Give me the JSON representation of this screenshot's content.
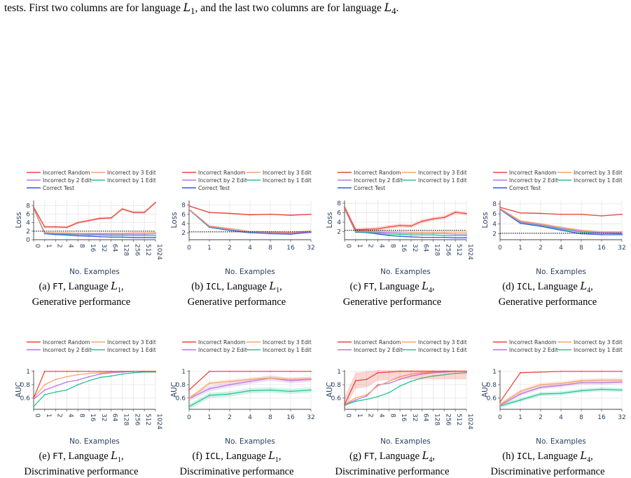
{
  "caption": {
    "text_a": "tests. First two columns are for language ",
    "lang1": "L",
    "sub1": "1",
    "text_b": ", and the last two columns are for language ",
    "lang2": "L",
    "sub2": "4",
    "text_c": "."
  },
  "colors": {
    "Incorrect Random": "#e8493d",
    "Incorrect by 3 Edit": "#f6a46a",
    "Incorrect by 2 Edit": "#b777e8",
    "Incorrect by 1 Edit": "#27c597",
    "Correct Test": "#3a55dd"
  },
  "legend_top": [
    "Incorrect Random",
    "Incorrect by 3 Edit",
    "Incorrect by 2 Edit",
    "Incorrect by 1 Edit",
    "Correct Test"
  ],
  "legend_bottom": [
    "Incorrect Random",
    "Incorrect by 3 Edit",
    "Incorrect by 2 Edit",
    "Incorrect by 1 Edit"
  ],
  "chart_data": [
    {
      "id": "a",
      "type": "line",
      "row": "top",
      "col": 0,
      "label_prefix": "(a)",
      "method": "FT",
      "lang_letter": "L",
      "lang_sub": "1",
      "perf": "Generative performance",
      "xlabel": "No. Examples",
      "ylabel": "Loss",
      "x": [
        "0",
        "1",
        "2",
        "4",
        "8",
        "16",
        "32",
        "64",
        "128",
        "256",
        "512",
        "1024"
      ],
      "ylim": [
        0,
        9.2
      ],
      "yticks": [
        "0",
        "2",
        "4",
        "6",
        "8"
      ],
      "grid": true,
      "legend": "top",
      "hline": 2.0,
      "rotate_xticks": true,
      "series": [
        {
          "name": "Incorrect Random",
          "values": [
            7.6,
            3.0,
            3.0,
            2.9,
            4.0,
            4.5,
            5.0,
            5.1,
            7.2,
            6.4,
            6.4,
            8.7
          ],
          "band": 0.3
        },
        {
          "name": "Incorrect by 3 Edit",
          "values": [
            7.5,
            1.7,
            1.6,
            1.6,
            1.5,
            1.5,
            1.5,
            1.5,
            1.5,
            1.6,
            1.6,
            1.7
          ]
        },
        {
          "name": "Incorrect by 2 Edit",
          "values": [
            7.5,
            1.6,
            1.5,
            1.4,
            1.3,
            1.3,
            1.3,
            1.3,
            1.3,
            1.3,
            1.3,
            1.4
          ]
        },
        {
          "name": "Incorrect by 1 Edit",
          "values": [
            7.5,
            1.5,
            1.4,
            1.3,
            1.2,
            1.1,
            1.1,
            1.0,
            1.0,
            1.0,
            1.0,
            1.0
          ]
        },
        {
          "name": "Correct Test",
          "values": [
            7.4,
            1.4,
            1.2,
            1.1,
            0.9,
            0.8,
            0.7,
            0.6,
            0.6,
            0.5,
            0.5,
            0.5
          ]
        }
      ]
    },
    {
      "id": "b",
      "type": "line",
      "row": "top",
      "col": 1,
      "label_prefix": "(b)",
      "method": "ICL",
      "lang_letter": "L",
      "lang_sub": "1",
      "perf": "Generative performance",
      "xlabel": "No. Examples",
      "ylabel": "Loss",
      "x": [
        "0",
        "1",
        "2",
        "4",
        "8",
        "16",
        "32"
      ],
      "ylim": [
        0.5,
        9.0
      ],
      "yticks": [
        "2",
        "4",
        "6",
        "8"
      ],
      "grid": true,
      "legend": "top",
      "hline": 2.2,
      "rotate_xticks": false,
      "series": [
        {
          "name": "Incorrect Random",
          "values": [
            7.8,
            6.4,
            6.2,
            5.9,
            6.0,
            5.8,
            6.0
          ],
          "band": 0.15
        },
        {
          "name": "Incorrect by 3 Edit",
          "values": [
            7.1,
            3.5,
            2.9,
            2.3,
            2.2,
            2.1,
            2.4
          ],
          "band": 0.15
        },
        {
          "name": "Incorrect by 2 Edit",
          "values": [
            7.1,
            3.4,
            2.7,
            2.2,
            2.0,
            1.9,
            2.2
          ]
        },
        {
          "name": "Incorrect by 1 Edit",
          "values": [
            7.1,
            3.3,
            2.6,
            2.1,
            1.9,
            1.9,
            2.2
          ]
        },
        {
          "name": "Correct Test",
          "values": [
            7.0,
            3.2,
            2.5,
            2.0,
            1.8,
            1.7,
            2.1
          ]
        }
      ]
    },
    {
      "id": "c",
      "type": "line",
      "row": "top",
      "col": 2,
      "label_prefix": "(c)",
      "method": "FT",
      "lang_letter": "L",
      "lang_sub": "4",
      "perf": "Generative performance",
      "xlabel": "No. Examples",
      "ylabel": "Loss",
      "x": [
        "0",
        "1",
        "2",
        "4",
        "8",
        "16",
        "32",
        "64",
        "128",
        "256",
        "512",
        "1024"
      ],
      "ylim": [
        0.3,
        8.6
      ],
      "yticks": [
        "2",
        "4",
        "6",
        "8"
      ],
      "grid": true,
      "legend": "top",
      "hline": 2.3,
      "rotate_xticks": true,
      "series": [
        {
          "name": "Incorrect Random",
          "values": [
            7.2,
            2.4,
            2.5,
            2.6,
            3.0,
            3.3,
            3.2,
            4.2,
            4.7,
            5.0,
            6.1,
            5.8
          ],
          "band": 0.4
        },
        {
          "name": "Incorrect by 3 Edit",
          "values": [
            7.0,
            2.2,
            2.2,
            2.1,
            2.0,
            2.0,
            1.9,
            1.9,
            1.9,
            1.9,
            1.9,
            1.9
          ]
        },
        {
          "name": "Incorrect by 2 Edit",
          "values": [
            7.0,
            2.1,
            2.0,
            1.9,
            1.8,
            1.7,
            1.6,
            1.6,
            1.6,
            1.6,
            1.5,
            1.5
          ]
        },
        {
          "name": "Incorrect by 1 Edit",
          "values": [
            7.0,
            2.0,
            1.9,
            1.7,
            1.5,
            1.4,
            1.3,
            1.3,
            1.3,
            1.2,
            1.2,
            1.2
          ]
        },
        {
          "name": "Correct Test",
          "values": [
            6.9,
            1.9,
            1.8,
            1.5,
            1.2,
            1.0,
            0.9,
            0.8,
            0.8,
            0.8,
            0.7,
            0.7
          ]
        }
      ]
    },
    {
      "id": "d",
      "type": "line",
      "row": "top",
      "col": 3,
      "label_prefix": "(d)",
      "method": "ICL",
      "lang_letter": "L",
      "lang_sub": "4",
      "perf": "Generative performance",
      "xlabel": "No. Examples",
      "ylabel": "Loss",
      "x": [
        "0",
        "1",
        "2",
        "4",
        "8",
        "16",
        "32"
      ],
      "ylim": [
        0.8,
        8.7
      ],
      "yticks": [
        "2",
        "4",
        "6",
        "8"
      ],
      "grid": true,
      "legend": "top",
      "hline": 2.1,
      "rotate_xticks": false,
      "series": [
        {
          "name": "Incorrect Random",
          "values": [
            7.3,
            6.2,
            6.1,
            5.9,
            5.9,
            5.6,
            5.9
          ],
          "band": 0.1
        },
        {
          "name": "Incorrect by 3 Edit",
          "values": [
            7.1,
            4.6,
            4.0,
            3.3,
            2.7,
            2.4,
            2.4
          ],
          "band": 0.15
        },
        {
          "name": "Incorrect by 2 Edit",
          "values": [
            7.0,
            4.4,
            3.8,
            3.1,
            2.5,
            2.2,
            2.2
          ]
        },
        {
          "name": "Incorrect by 1 Edit",
          "values": [
            7.0,
            4.3,
            3.7,
            2.9,
            2.3,
            2.1,
            2.0
          ]
        },
        {
          "name": "Correct Test",
          "values": [
            6.9,
            4.1,
            3.5,
            2.7,
            2.0,
            1.8,
            1.8
          ]
        }
      ]
    },
    {
      "id": "e",
      "type": "line",
      "row": "bottom",
      "col": 0,
      "label_prefix": "(e)",
      "method": "FT",
      "lang_letter": "L",
      "lang_sub": "1",
      "perf": "Discriminative performance",
      "xlabel": "No. Examples",
      "ylabel": "AUC",
      "x": [
        "0",
        "1",
        "2",
        "4",
        "8",
        "16",
        "32",
        "64",
        "128",
        "256",
        "512",
        "1024"
      ],
      "ylim": [
        0.43,
        1.02
      ],
      "yticks": [
        "0.6",
        "0.8",
        "1"
      ],
      "grid": true,
      "legend": "top",
      "rotate_xticks": true,
      "series": [
        {
          "name": "Incorrect Random",
          "values": [
            0.6,
            1.0,
            1.0,
            1.0,
            1.0,
            1.0,
            1.0,
            1.0,
            1.0,
            1.0,
            1.0,
            1.0
          ]
        },
        {
          "name": "Incorrect by 3 Edit",
          "values": [
            0.6,
            0.8,
            0.88,
            0.92,
            0.95,
            0.97,
            0.98,
            0.99,
            1.0,
            1.0,
            1.0,
            1.0
          ]
        },
        {
          "name": "Incorrect by 2 Edit",
          "values": [
            0.58,
            0.72,
            0.78,
            0.84,
            0.87,
            0.92,
            0.96,
            0.98,
            0.99,
            1.0,
            1.0,
            1.0
          ]
        },
        {
          "name": "Incorrect by 1 Edit",
          "values": [
            0.47,
            0.65,
            0.69,
            0.72,
            0.8,
            0.86,
            0.91,
            0.93,
            0.96,
            0.98,
            0.99,
            0.99
          ]
        }
      ]
    },
    {
      "id": "f",
      "type": "line",
      "row": "bottom",
      "col": 1,
      "label_prefix": "(f)",
      "method": "ICL",
      "lang_letter": "L",
      "lang_sub": "1",
      "perf": "Discriminative performance",
      "xlabel": "No. Examples",
      "ylabel": "AUC",
      "x": [
        "0",
        "1",
        "2",
        "4",
        "8",
        "16",
        "32"
      ],
      "ylim": [
        0.43,
        1.02
      ],
      "yticks": [
        "0.6",
        "0.8",
        "1"
      ],
      "grid": true,
      "legend": "top",
      "rotate_xticks": false,
      "series": [
        {
          "name": "Incorrect Random",
          "values": [
            0.72,
            1.0,
            1.0,
            1.0,
            1.0,
            1.0,
            1.0
          ]
        },
        {
          "name": "Incorrect by 3 Edit",
          "values": [
            0.59,
            0.82,
            0.85,
            0.88,
            0.9,
            0.88,
            0.89
          ],
          "band": 0.03
        },
        {
          "name": "Incorrect by 2 Edit",
          "values": [
            0.59,
            0.74,
            0.8,
            0.85,
            0.9,
            0.86,
            0.88
          ],
          "band": 0.04
        },
        {
          "name": "Incorrect by 1 Edit",
          "values": [
            0.47,
            0.64,
            0.66,
            0.71,
            0.72,
            0.7,
            0.72
          ],
          "band": 0.04
        }
      ]
    },
    {
      "id": "g",
      "type": "line",
      "row": "bottom",
      "col": 2,
      "label_prefix": "(g)",
      "method": "FT",
      "lang_letter": "L",
      "lang_sub": "4",
      "perf": "Discriminative performance",
      "xlabel": "No. Examples",
      "ylabel": "AUC",
      "x": [
        "0",
        "1",
        "2",
        "4",
        "8",
        "16",
        "32",
        "64",
        "128",
        "256",
        "512",
        "1024"
      ],
      "ylim": [
        0.43,
        1.02
      ],
      "yticks": [
        "0.6",
        "0.8",
        "1"
      ],
      "grid": true,
      "legend": "top",
      "rotate_xticks": true,
      "series": [
        {
          "name": "Incorrect Random",
          "values": [
            0.5,
            0.86,
            0.88,
            0.98,
            0.99,
            1.0,
            1.0,
            1.0,
            1.0,
            1.0,
            1.0,
            1.0
          ],
          "band": 0.12
        },
        {
          "name": "Incorrect by 3 Edit",
          "values": [
            0.5,
            0.6,
            0.65,
            0.78,
            0.85,
            0.92,
            0.96,
            0.98,
            0.99,
            1.0,
            1.0,
            1.0
          ]
        },
        {
          "name": "Incorrect by 2 Edit",
          "values": [
            0.5,
            0.57,
            0.63,
            0.8,
            0.82,
            0.88,
            0.93,
            0.96,
            0.98,
            0.99,
            1.0,
            1.0
          ]
        },
        {
          "name": "Incorrect by 1 Edit",
          "values": [
            0.49,
            0.55,
            0.58,
            0.62,
            0.68,
            0.78,
            0.85,
            0.9,
            0.93,
            0.95,
            0.97,
            0.98
          ]
        }
      ]
    },
    {
      "id": "h",
      "type": "line",
      "row": "bottom",
      "col": 3,
      "label_prefix": "(h)",
      "method": "ICL",
      "lang_letter": "L",
      "lang_sub": "4",
      "perf": "Discriminative performance",
      "xlabel": "No. Examples",
      "ylabel": "AUC",
      "x": [
        "0",
        "1",
        "2",
        "4",
        "8",
        "16",
        "32"
      ],
      "ylim": [
        0.43,
        1.02
      ],
      "yticks": [
        "0.6",
        "0.8",
        "1"
      ],
      "grid": true,
      "legend": "top",
      "rotate_xticks": false,
      "series": [
        {
          "name": "Incorrect Random",
          "values": [
            0.54,
            0.98,
            0.99,
            1.0,
            1.0,
            1.0,
            1.0
          ]
        },
        {
          "name": "Incorrect by 3 Edit",
          "values": [
            0.5,
            0.7,
            0.8,
            0.82,
            0.86,
            0.87,
            0.87
          ],
          "band": 0.03
        },
        {
          "name": "Incorrect by 2 Edit",
          "values": [
            0.49,
            0.66,
            0.76,
            0.79,
            0.83,
            0.83,
            0.84
          ],
          "band": 0.03
        },
        {
          "name": "Incorrect by 1 Edit",
          "values": [
            0.48,
            0.57,
            0.66,
            0.67,
            0.71,
            0.73,
            0.72
          ],
          "band": 0.03
        }
      ]
    }
  ]
}
